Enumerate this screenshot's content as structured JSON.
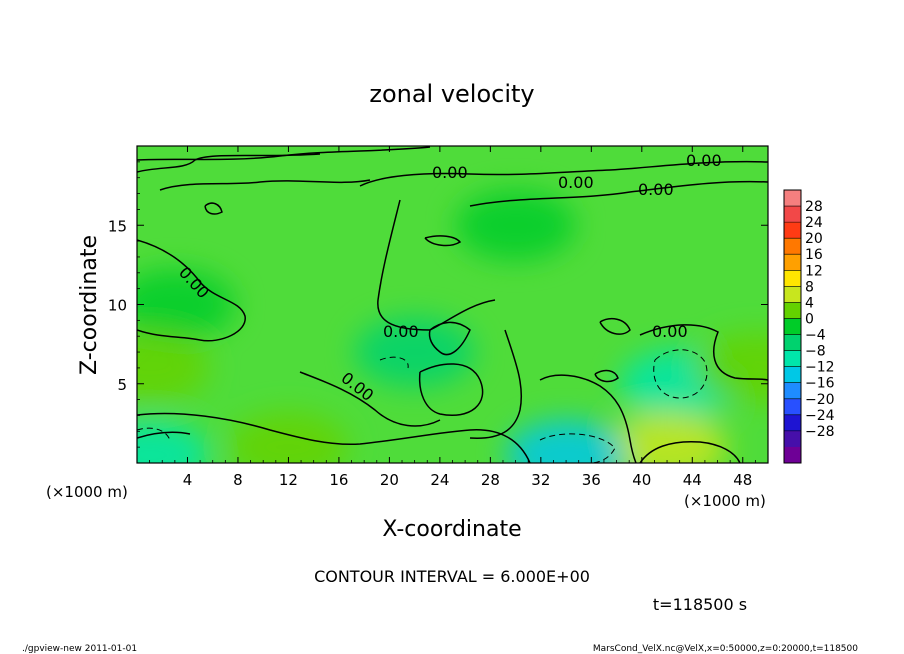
{
  "chart_data": {
    "type": "heatmap",
    "title": "zonal velocity",
    "xlabel": "X-coordinate",
    "ylabel": "Z-coordinate",
    "x_unit_note": "(×1000 m)",
    "y_unit_note": "(×1000 m)",
    "xlim": [
      0,
      50
    ],
    "ylim": [
      0,
      20
    ],
    "x_ticks": [
      4,
      8,
      12,
      16,
      20,
      24,
      28,
      32,
      36,
      40,
      44,
      48
    ],
    "y_ticks": [
      5,
      10,
      15
    ],
    "colorbar": {
      "labels": [
        "28",
        "24",
        "20",
        "16",
        "12",
        "8",
        "4",
        "0",
        "−4",
        "−8",
        "−12",
        "−16",
        "−20",
        "−24",
        "−28"
      ],
      "colors": [
        "#f57f7f",
        "#f24848",
        "#ff3b14",
        "#ff7800",
        "#ffa000",
        "#ffe600",
        "#c8e61e",
        "#64d200",
        "#00cc28",
        "#00d26e",
        "#00e6aa",
        "#00c8e6",
        "#1e8cff",
        "#2850ff",
        "#1e14d2",
        "#460faa",
        "#6e0096"
      ]
    },
    "contour_labels": [
      "0.00",
      "0.00",
      "0.00",
      "0.00",
      "0.00",
      "0.00",
      "0.00",
      "0.00"
    ],
    "contour_interval": "CONTOUR INTERVAL = 6.000E+00",
    "time_label": "t=118500 s",
    "field_regions": [
      {
        "x": 3,
        "z": 10,
        "value": 2
      },
      {
        "x": 22,
        "z": 7,
        "value": -3
      },
      {
        "x": 43,
        "z": 5,
        "value": -7
      },
      {
        "x": 1,
        "z": 6,
        "value": 5
      },
      {
        "x": 12,
        "z": 1,
        "value": 6
      },
      {
        "x": 42,
        "z": 1,
        "value": 7
      },
      {
        "x": 34,
        "z": 0.5,
        "value": -10
      },
      {
        "x": 1,
        "z": 0.5,
        "value": -9
      },
      {
        "x": 30,
        "z": 15,
        "value": 1
      },
      {
        "x": 49,
        "z": 6,
        "value": 4
      }
    ]
  },
  "footer": {
    "left": "./gpview-new   2011-01-01",
    "right": "MarsCond_VelX.nc@VelX,x=0:50000,z=0:20000,t=118500"
  }
}
